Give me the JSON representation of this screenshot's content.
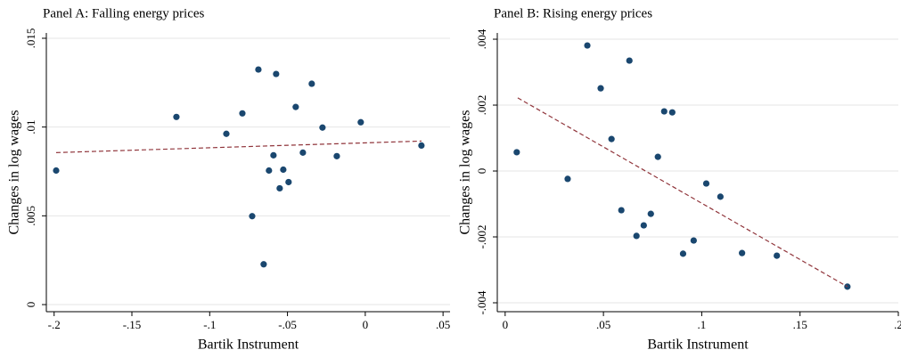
{
  "chart_data": [
    {
      "type": "scatter",
      "title": "Panel A: Falling energy prices",
      "x_label": "Bartik Instrument",
      "y_label": "Changes in log wages",
      "xlim": [
        -0.205,
        0.0545
      ],
      "ylim": [
        -0.0004,
        0.0153
      ],
      "xticks": [
        {
          "value": -0.2,
          "label": "-.2"
        },
        {
          "value": -0.15,
          "label": "-.15"
        },
        {
          "value": -0.1,
          "label": "-.1"
        },
        {
          "value": -0.05,
          "label": "-.05"
        },
        0,
        {
          "value": 0.05,
          "label": ".05"
        }
      ],
      "yticks": [
        0,
        {
          "value": 0.005,
          "label": ".005"
        },
        {
          "value": 0.01,
          "label": ".01"
        },
        {
          "value": 0.015,
          "label": ".015"
        }
      ],
      "grid": true,
      "color": "#1a476f",
      "x": [
        -0.1987,
        -0.1214,
        -0.0893,
        -0.079,
        -0.0727,
        -0.0687,
        -0.0653,
        -0.0619,
        -0.059,
        -0.0573,
        -0.055,
        -0.0527,
        -0.0493,
        -0.0447,
        -0.0401,
        -0.0344,
        -0.0275,
        -0.0183,
        -0.0029,
        0.0361
      ],
      "y": [
        0.00755,
        0.01057,
        0.00962,
        0.01077,
        0.00498,
        0.01324,
        0.00227,
        0.00755,
        0.00841,
        0.01299,
        0.00655,
        0.0076,
        0.0069,
        0.01113,
        0.00856,
        0.01244,
        0.00997,
        0.00836,
        0.01027,
        0.00896
      ],
      "fit_line": {
        "color": "#90353b",
        "x": [
          -0.1987,
          0.0361
        ],
        "y": [
          0.00856,
          0.00921
        ]
      }
    },
    {
      "type": "scatter",
      "title": "Panel B: Rising energy prices",
      "x_label": "Bartik Instrument",
      "y_label": "Changes in log wages",
      "xlim": [
        -0.004,
        0.2
      ],
      "ylim": [
        -0.00427,
        0.00419
      ],
      "xticks": [
        0,
        {
          "value": 0.05,
          "label": ".05"
        },
        {
          "value": 0.1,
          "label": ".1"
        },
        {
          "value": 0.15,
          "label": ".15"
        },
        {
          "value": 0.2,
          "label": ".2"
        }
      ],
      "yticks": [
        {
          "value": -0.004,
          "label": "-.004"
        },
        {
          "value": -0.002,
          "label": "-.002"
        },
        0,
        {
          "value": 0.002,
          "label": ".002"
        },
        {
          "value": 0.004,
          "label": ".004"
        }
      ],
      "grid": true,
      "color": "#1a476f",
      "x": [
        0.0059,
        0.0318,
        0.0418,
        0.0486,
        0.0632,
        0.0541,
        0.0591,
        0.0668,
        0.0705,
        0.0741,
        0.0777,
        0.0809,
        0.085,
        0.0905,
        0.0959,
        0.1023,
        0.1095,
        0.1205,
        0.1382,
        0.1741
      ],
      "y": [
        0.00057,
        -0.00024,
        0.00381,
        0.00251,
        0.00335,
        0.00097,
        -0.00119,
        -0.00197,
        -0.00165,
        -0.0013,
        0.00043,
        0.00181,
        0.00178,
        -0.00251,
        -0.00211,
        -0.00038,
        -0.00078,
        -0.00249,
        -0.00257,
        -0.00351
      ],
      "fit_line": {
        "color": "#90353b",
        "x": [
          0.0064,
          0.1741
        ],
        "y": [
          0.00222,
          -0.00351
        ]
      }
    }
  ]
}
